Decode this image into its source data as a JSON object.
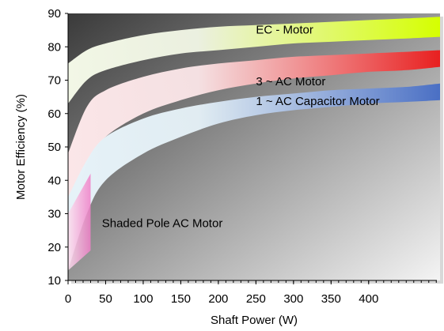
{
  "chart_data": {
    "type": "area",
    "xlabel": "Shaft Power (W)",
    "ylabel": "Motor Efficiency (%)",
    "xlim": [
      0,
      495
    ],
    "ylim": [
      10,
      90
    ],
    "x_ticks": [
      0,
      50,
      100,
      150,
      200,
      250,
      300,
      350,
      400
    ],
    "x_tick_labels": [
      "0",
      "50",
      "100",
      "150",
      "200",
      "250",
      "300",
      "350",
      "400"
    ],
    "y_ticks": [
      10,
      20,
      30,
      40,
      50,
      60,
      70,
      80,
      90
    ],
    "y_tick_labels": [
      "10",
      "20",
      "30",
      "40",
      "50",
      "60",
      "70",
      "80",
      "90"
    ],
    "grid": false,
    "series": [
      {
        "name": "EC - Motor",
        "color_light": "#f2f7e6",
        "color_dark": "#d5ff00",
        "x": [
          0,
          25,
          50,
          100,
          150,
          200,
          250,
          300,
          350,
          400,
          450,
          495
        ],
        "lower": [
          63,
          70,
          73,
          76,
          78,
          79,
          80,
          81,
          81.5,
          82,
          82.5,
          83
        ],
        "upper": [
          75,
          79,
          81,
          83.5,
          85,
          86,
          86.5,
          87,
          87.5,
          88,
          88.5,
          89
        ]
      },
      {
        "name": "3 ~ AC Motor",
        "color_light": "#fbe6e8",
        "color_dark": "#e82020",
        "x": [
          0,
          25,
          50,
          100,
          150,
          200,
          250,
          300,
          350,
          400,
          450,
          495
        ],
        "lower": [
          27,
          45,
          53,
          60,
          64,
          67,
          69,
          70.5,
          71.5,
          72.5,
          73,
          74
        ],
        "upper": [
          48,
          62,
          67,
          71,
          73.5,
          75,
          76,
          77,
          77.5,
          78,
          78.5,
          79
        ]
      },
      {
        "name": "1 ~ AC Capacitor Motor",
        "color_light": "#e6f2f8",
        "color_dark": "#4a6fc4",
        "x": [
          0,
          25,
          50,
          100,
          150,
          200,
          250,
          300,
          350,
          400,
          450,
          495
        ],
        "lower": [
          13,
          30,
          40,
          48,
          53,
          57,
          59.5,
          61,
          62,
          63,
          63.5,
          64
        ],
        "upper": [
          35,
          46,
          53,
          58.5,
          61.5,
          63.5,
          65,
          66,
          67,
          67.5,
          68,
          69
        ]
      }
    ],
    "shaded_pole": {
      "name": "Shaded Pole AC Motor",
      "color": "#f080c8",
      "x": [
        0,
        30
      ],
      "lower": [
        13,
        19
      ],
      "upper": [
        30,
        42
      ]
    }
  }
}
